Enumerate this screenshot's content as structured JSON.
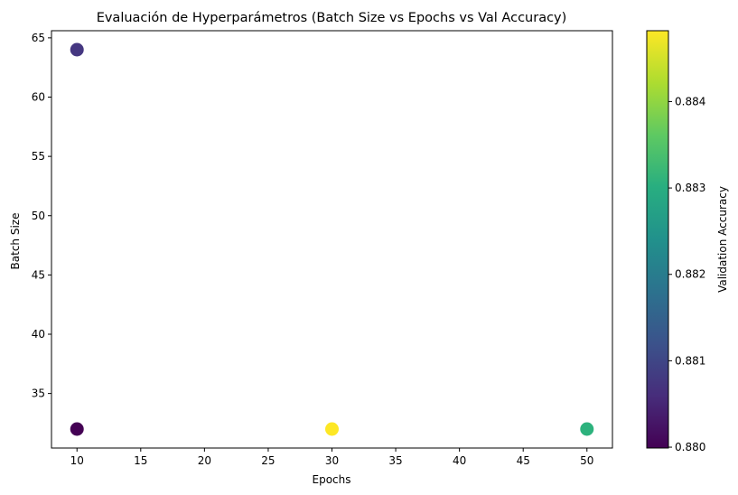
{
  "chart_data": {
    "type": "scatter",
    "title": "Evaluación de Hyperparámetros (Batch Size vs Epochs vs Val Accuracy)",
    "xlabel": "Epochs",
    "ylabel": "Batch Size",
    "xlim": [
      8,
      52
    ],
    "ylim": [
      30.4,
      65.6
    ],
    "xticks": [
      10,
      15,
      20,
      25,
      30,
      35,
      40,
      45,
      50
    ],
    "yticks": [
      35,
      40,
      45,
      50,
      55,
      60,
      65
    ],
    "colorbar": {
      "label": "Validation Accuracy",
      "colormap": "viridis",
      "range": [
        0.87999,
        0.88482
      ],
      "ticks": [
        0.88,
        0.881,
        0.882,
        0.883,
        0.884
      ]
    },
    "points": [
      {
        "x": 10,
        "y": 64,
        "c": 0.8807,
        "color": "#453781"
      },
      {
        "x": 10,
        "y": 32,
        "c": 0.87999,
        "color": "#440154"
      },
      {
        "x": 30,
        "y": 32,
        "c": 0.88482,
        "color": "#fde725"
      },
      {
        "x": 50,
        "y": 32,
        "c": 0.8833,
        "color": "#2db27d"
      }
    ],
    "grid": false,
    "legend": "none"
  }
}
